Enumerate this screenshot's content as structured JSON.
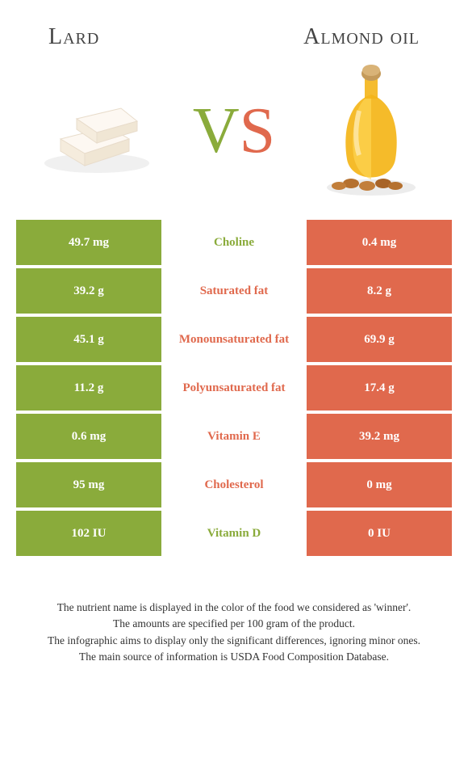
{
  "header": {
    "left_title": "Lard",
    "right_title": "Almond oil"
  },
  "vs": {
    "v": "V",
    "s": "S"
  },
  "colors": {
    "left": "#8AAB3B",
    "right": "#E0694D",
    "left_text": "#8AAB3B",
    "right_text": "#E0694D"
  },
  "rows": [
    {
      "left": "49.7 mg",
      "label": "Choline",
      "right": "0.4 mg",
      "winner": "left"
    },
    {
      "left": "39.2 g",
      "label": "Saturated fat",
      "right": "8.2 g",
      "winner": "right"
    },
    {
      "left": "45.1 g",
      "label": "Monounsaturated fat",
      "right": "69.9 g",
      "winner": "right"
    },
    {
      "left": "11.2 g",
      "label": "Polyunsaturated fat",
      "right": "17.4 g",
      "winner": "right"
    },
    {
      "left": "0.6 mg",
      "label": "Vitamin E",
      "right": "39.2 mg",
      "winner": "right"
    },
    {
      "left": "95 mg",
      "label": "Cholesterol",
      "right": "0 mg",
      "winner": "right"
    },
    {
      "left": "102 IU",
      "label": "Vitamin D",
      "right": "0 IU",
      "winner": "left"
    }
  ],
  "footnotes": [
    "The nutrient name is displayed in the color of the food we considered as 'winner'.",
    "The amounts are specified per 100 gram of the product.",
    "The infographic aims to display only the significant differences, ignoring minor ones.",
    "The main source of information is USDA Food Composition Database."
  ]
}
